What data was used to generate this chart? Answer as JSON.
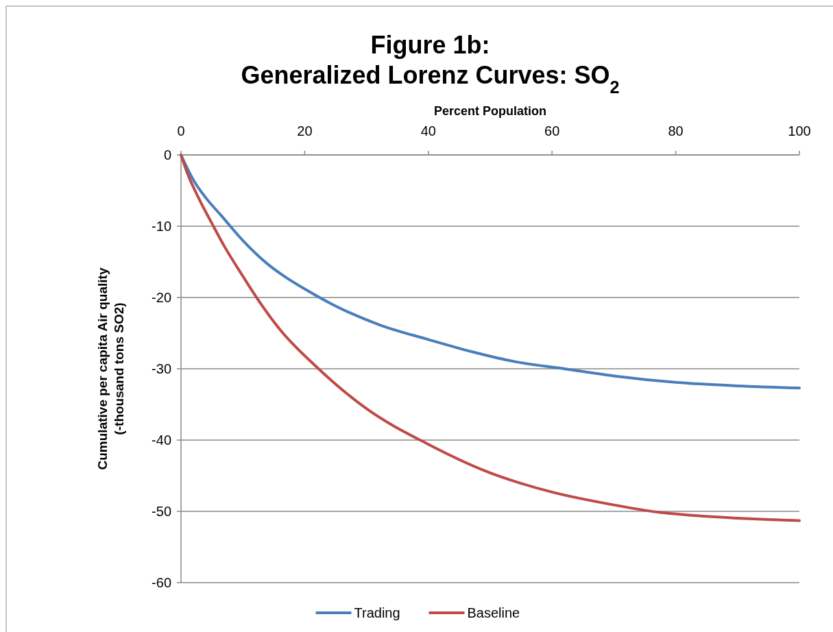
{
  "chart_data": {
    "type": "line",
    "title": "Figure 1b:\nGeneralized Lorenz Curves:  SO$_{2}$",
    "xlabel": "Percent Population",
    "ylabel": "Cumulative per capita Air quality\n(-thousand tons SO2)",
    "xlim": [
      0,
      100
    ],
    "xticks": [
      0,
      20,
      40,
      60,
      80,
      100
    ],
    "ylim": [
      -60,
      0
    ],
    "yticks": [
      -60,
      -50,
      -40,
      -30,
      -20,
      -10,
      0
    ],
    "grid": "y",
    "legend": "bottom",
    "marker": "none",
    "line_style": "solid",
    "series": [
      {
        "name": "Trading",
        "color": "#4a7ebb",
        "x": [
          0,
          2,
          4,
          6.5,
          10,
          14,
          17,
          20,
          25,
          32,
          40,
          47,
          54,
          62,
          70,
          80,
          90,
          100
        ],
        "values": [
          0,
          -3.5,
          -6,
          -8.5,
          -12,
          -15.3,
          -17.2,
          -18.8,
          -21.2,
          -23.8,
          -25.9,
          -27.6,
          -29,
          -30,
          -31,
          -31.9,
          -32.4,
          -32.7
        ]
      },
      {
        "name": "Baseline",
        "color": "#be4b48",
        "x": [
          0,
          1,
          3,
          5,
          7,
          10,
          13,
          16,
          22,
          30,
          40,
          50,
          54,
          60,
          70,
          77,
          85,
          100
        ],
        "values": [
          0,
          -2.5,
          -6.3,
          -9.6,
          -12.8,
          -17,
          -21,
          -24.5,
          -29.8,
          -35.6,
          -40.6,
          -44.6,
          -45.8,
          -47.3,
          -49.1,
          -50.1,
          -50.7,
          -51.3
        ]
      }
    ]
  }
}
